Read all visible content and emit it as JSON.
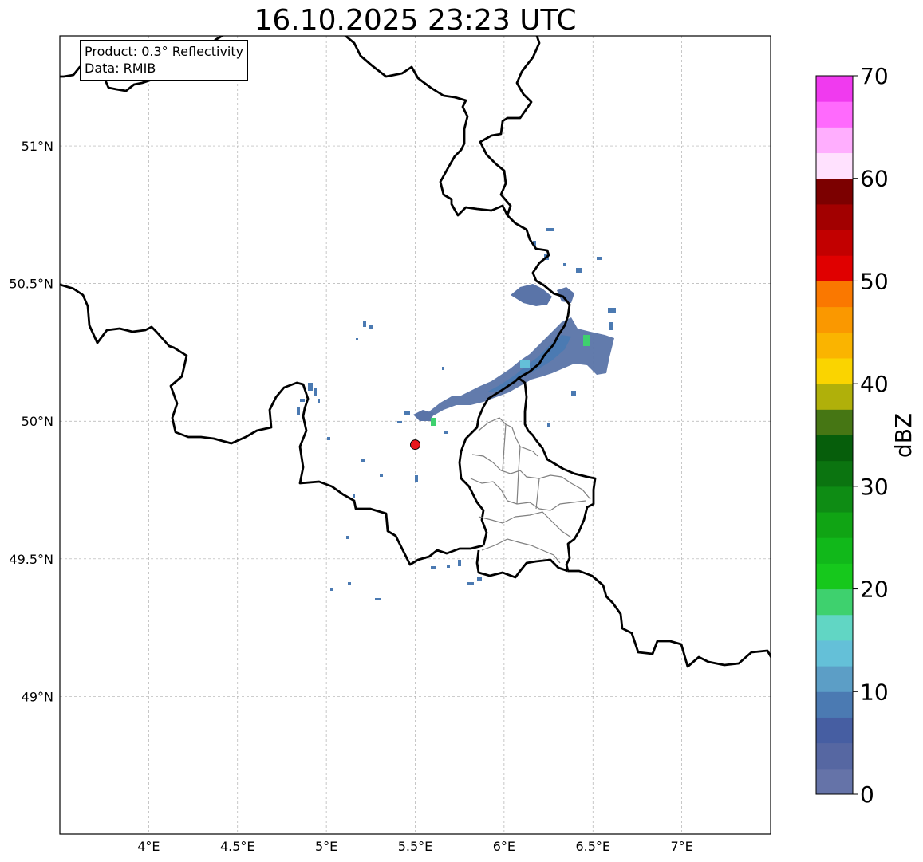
{
  "title": "16.10.2025 23:23 UTC",
  "info_box": {
    "product": "Product: 0.3° Reflectivity",
    "data_source": "Data: RMIB"
  },
  "map": {
    "lon_range": [
      3.5,
      7.5
    ],
    "lat_range": [
      48.5,
      51.4
    ],
    "lon_ticks": [
      {
        "value": 4.0,
        "label": "4°E"
      },
      {
        "value": 4.5,
        "label": "4.5°E"
      },
      {
        "value": 5.0,
        "label": "5°E"
      },
      {
        "value": 5.5,
        "label": "5.5°E"
      },
      {
        "value": 6.0,
        "label": "6°E"
      },
      {
        "value": 6.5,
        "label": "6.5°E"
      },
      {
        "value": 7.0,
        "label": "7°E"
      }
    ],
    "lat_ticks": [
      {
        "value": 49.0,
        "label": "49°N"
      },
      {
        "value": 49.5,
        "label": "49.5°N"
      },
      {
        "value": 50.0,
        "label": "50°N"
      },
      {
        "value": 50.5,
        "label": "50.5°N"
      },
      {
        "value": 51.0,
        "label": "51°N"
      }
    ],
    "radar_site": {
      "lon": 5.5,
      "lat": 49.915,
      "color": "#e8161b"
    }
  },
  "colorbar": {
    "label": "dBZ",
    "min": 0,
    "max": 70,
    "ticks": [
      0,
      10,
      20,
      30,
      40,
      50,
      60,
      70
    ],
    "tick_labels": [
      "0",
      "10",
      "20",
      "30",
      "40",
      "50",
      "60",
      "70"
    ],
    "colors": [
      "#6573a8",
      "#5667a2",
      "#465ea2",
      "#4b7ab2",
      "#5c9ec6",
      "#64c0d8",
      "#61d6c4",
      "#3ed16e",
      "#16c81c",
      "#11b81a",
      "#10a414",
      "#0e8c14",
      "#0b7410",
      "#065e0b",
      "#467614",
      "#b0b00a",
      "#fad400",
      "#fab400",
      "#fa9800",
      "#fa7800",
      "#e00000",
      "#c20000",
      "#a20000",
      "#7c0000",
      "#ffe1fe",
      "#ffaefe",
      "#ff6afd",
      "#f03aef"
    ]
  }
}
